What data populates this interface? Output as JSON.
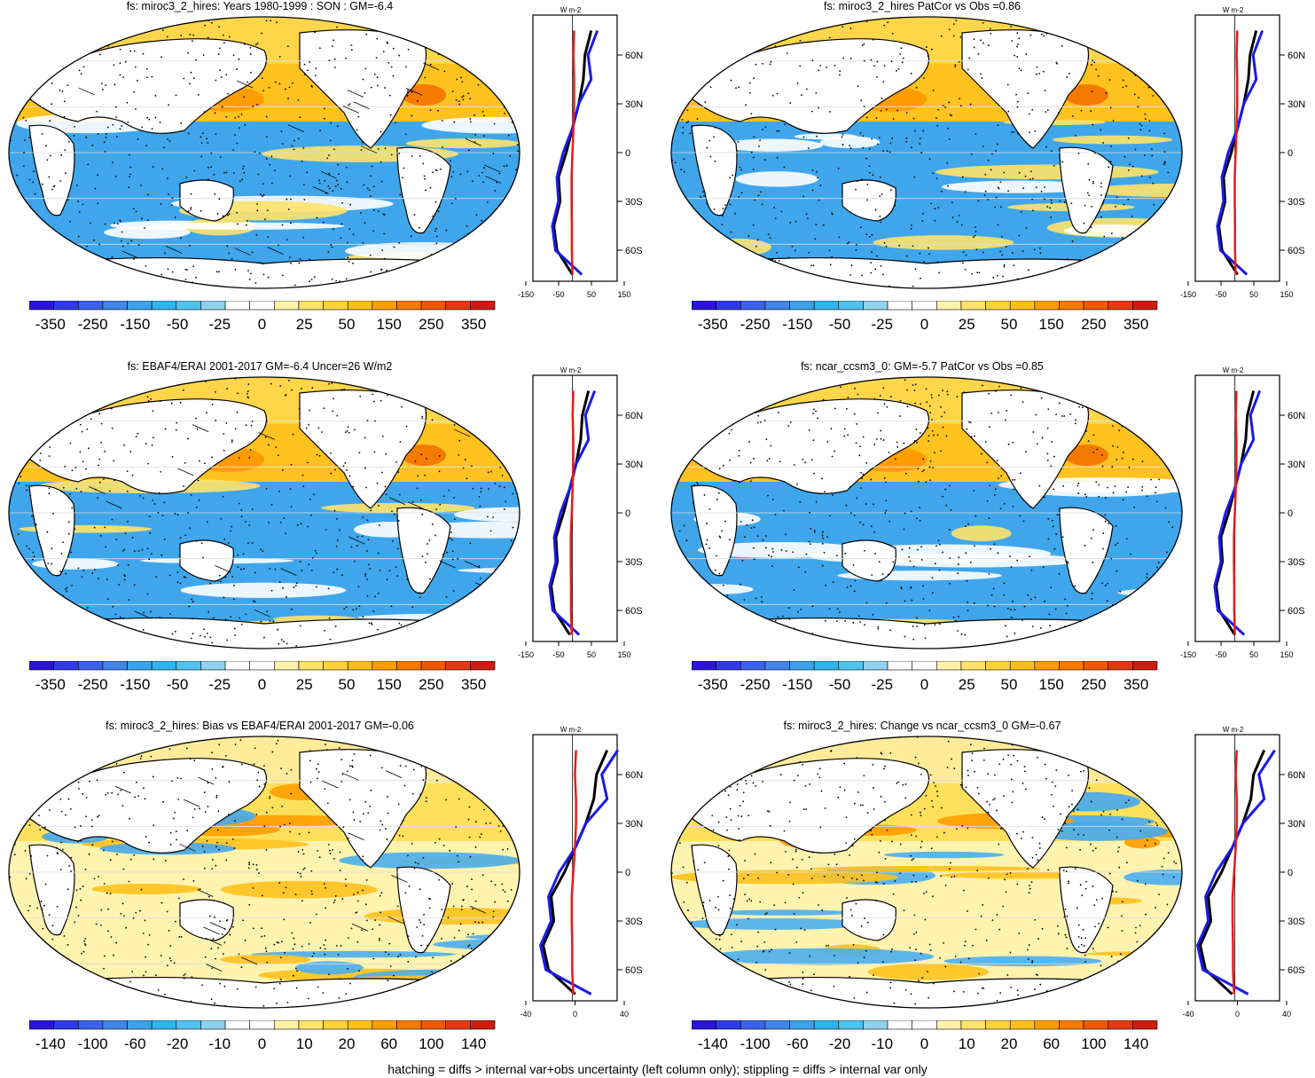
{
  "panels": [
    {
      "id": "p1",
      "title": "fs: miroc3_2_hires: Years 1980-1999 : SON : GM=-6.4",
      "scale": "big",
      "hatch": true,
      "seed": 1
    },
    {
      "id": "p2",
      "title": "fs: miroc3_2_hires PatCor vs Obs =0.86",
      "scale": "big",
      "hatch": false,
      "seed": 2
    },
    {
      "id": "p3",
      "title": "fs: EBAF4/ERAI 2001-2017 GM=-6.4 Uncer=26 W/m2",
      "scale": "big",
      "hatch": true,
      "seed": 3
    },
    {
      "id": "p4",
      "title": "fs: ncar_ccsm3_0: GM=-5.7 PatCor vs Obs =0.85",
      "scale": "big",
      "hatch": false,
      "seed": 4
    },
    {
      "id": "p5",
      "title": "fs: miroc3_2_hires: Bias vs EBAF4/ERAI 2001-2017  GM=-0.06",
      "scale": "diff",
      "hatch": true,
      "seed": 5
    },
    {
      "id": "p6",
      "title": "fs: miroc3_2_hires: Change vs ncar_ccsm3_0 GM=-0.67",
      "scale": "diff",
      "hatch": false,
      "seed": 6
    }
  ],
  "colorbars": {
    "big": {
      "labels": [
        "-350",
        "-250",
        "-150",
        "-50",
        "-25",
        "0",
        "25",
        "50",
        "150",
        "250",
        "350"
      ]
    },
    "diff": {
      "labels": [
        "-140",
        "-100",
        "-60",
        "-20",
        "-10",
        "0",
        "10",
        "20",
        "60",
        "100",
        "140"
      ]
    },
    "colors": [
      "#2b14d6",
      "#2f3ce6",
      "#3a63e8",
      "#3f85ea",
      "#3aa3ec",
      "#2fb4ee",
      "#4fc3f0",
      "#8fd2ee",
      "#ffffff",
      "#ffffff",
      "#fff2a8",
      "#ffe36a",
      "#ffd23a",
      "#ffbf1a",
      "#ff9d00",
      "#f57a00",
      "#ec5a00",
      "#e23a10",
      "#cc1d10"
    ]
  },
  "profiles": {
    "unit": "W m-2",
    "lat_labels": [
      "60N",
      "30N",
      "0",
      "30S",
      "60S"
    ],
    "big_ticks": [
      "-150",
      "-50",
      "50",
      "150"
    ],
    "diff_ticks": [
      "-40",
      "0",
      "40"
    ]
  },
  "chart_data": [
    {
      "type": "heatmap",
      "title": "fs: miroc3_2_hires: Years 1980-1999 : SON : GM=-6.4",
      "colorbar_labels": [
        "-350",
        "-250",
        "-150",
        "-50",
        "-25",
        "0",
        "25",
        "50",
        "150",
        "250",
        "350"
      ]
    },
    {
      "type": "line",
      "xlabel": "W m-2",
      "x_ticks": [
        "-150",
        "-50",
        "50",
        "150"
      ],
      "y_ticks": [
        "60N",
        "30N",
        "0",
        "30S",
        "60S"
      ],
      "series": [
        {
          "name": "black",
          "lat": [
            75,
            60,
            45,
            30,
            15,
            0,
            -15,
            -30,
            -45,
            -60,
            -75
          ],
          "values": [
            60,
            40,
            35,
            20,
            0,
            -20,
            -45,
            -40,
            -60,
            -50,
            0
          ]
        },
        {
          "name": "blue",
          "lat": [
            75,
            60,
            45,
            30,
            15,
            0,
            -15,
            -30,
            -45,
            -60,
            -75
          ],
          "values": [
            80,
            50,
            60,
            20,
            0,
            -30,
            -50,
            -45,
            -65,
            -55,
            30
          ]
        },
        {
          "name": "red",
          "lat": [
            75,
            60,
            45,
            30,
            15,
            0,
            -15,
            -30,
            -45,
            -60,
            -75
          ],
          "values": [
            5,
            3,
            5,
            5,
            3,
            0,
            -3,
            -3,
            -2,
            -2,
            0
          ]
        }
      ]
    }
  ],
  "footer": "hatching = diffs > internal var+obs uncertainty (left column only); stippling = diffs > internal var only"
}
